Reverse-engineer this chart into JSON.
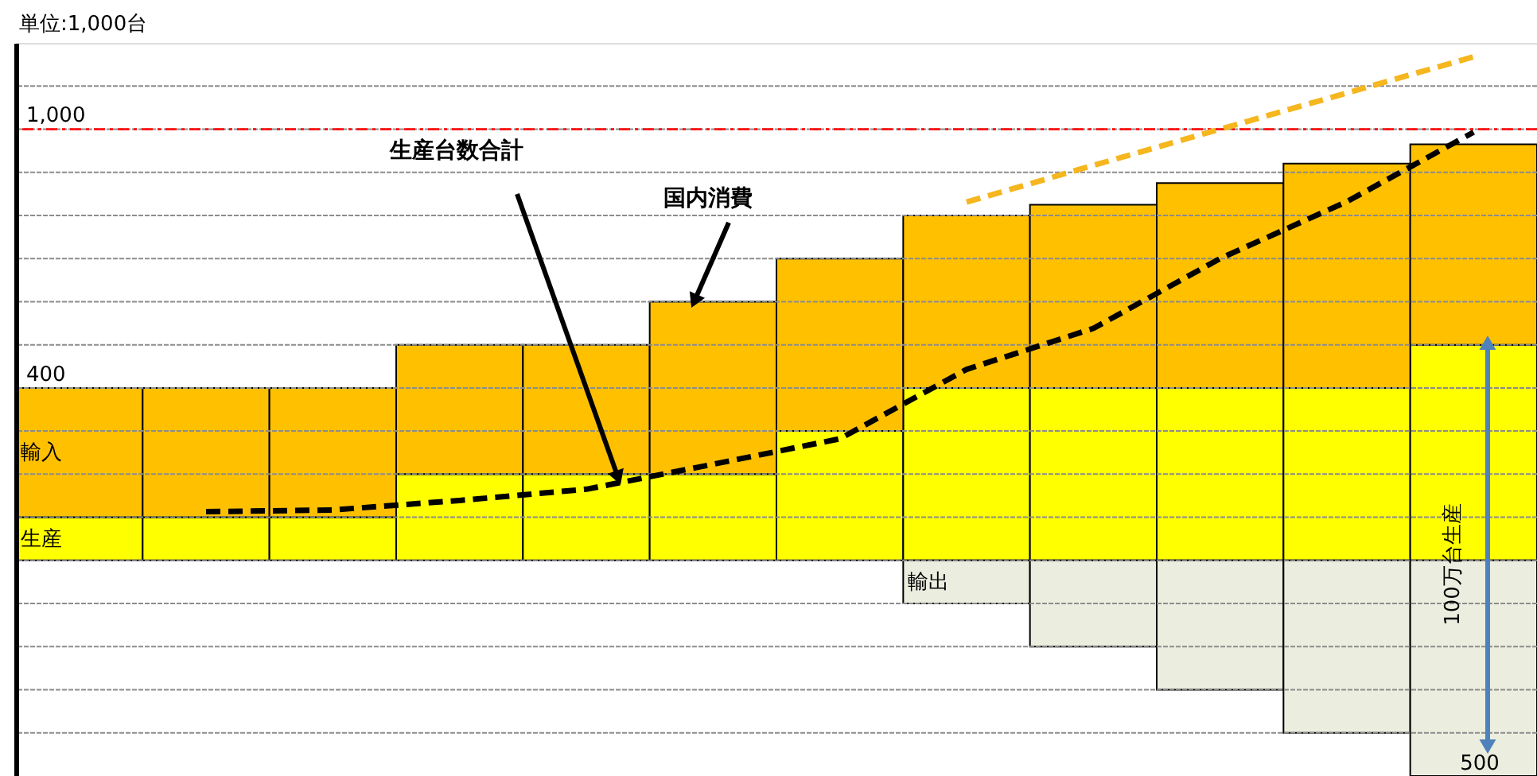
{
  "chart_data": {
    "type": "bar",
    "stacked": true,
    "categories": [
      null,
      null,
      null,
      null,
      null,
      null,
      null,
      null,
      null,
      null,
      null,
      null
    ],
    "series": [
      {
        "name": "生産",
        "color": "#ffff00",
        "values": [
          100,
          100,
          100,
          200,
          200,
          200,
          300,
          400,
          400,
          400,
          400,
          500
        ]
      },
      {
        "name": "輸入",
        "color": "#ffc000",
        "values": [
          300,
          300,
          300,
          300,
          300,
          400,
          400,
          400,
          425,
          475,
          520,
          465
        ]
      },
      {
        "name": "輸出",
        "color": "#ebeedf",
        "values": [
          null,
          null,
          null,
          null,
          null,
          null,
          null,
          -100,
          -200,
          -300,
          -400,
          -500
        ]
      },
      {
        "type": "line",
        "line_style": "dashed",
        "color": "#000000",
        "values": [
          null,
          113,
          117,
          139,
          165,
          223,
          282,
          443,
          538,
          700,
          832,
          993
        ]
      },
      {
        "type": "line",
        "line_style": "dashed",
        "color": "#f5b61e",
        "values": [
          null,
          null,
          null,
          null,
          null,
          null,
          null,
          831,
          916,
          1000,
          1084,
          1168
        ]
      }
    ],
    "ylim": [
      -500,
      1200
    ],
    "yticks": [
      {
        "value": -400,
        "label": null
      },
      {
        "value": -300,
        "label": null
      },
      {
        "value": -200,
        "label": null
      },
      {
        "value": -100,
        "label": null
      },
      {
        "value": 0,
        "label": null
      },
      {
        "value": 100,
        "label": null
      },
      {
        "value": 200,
        "label": null
      },
      {
        "value": 300,
        "label": null
      },
      {
        "value": 400,
        "label": "400"
      },
      {
        "value": 500,
        "label": null
      },
      {
        "value": 600,
        "label": null
      },
      {
        "value": 700,
        "label": null
      },
      {
        "value": 800,
        "label": null
      },
      {
        "value": 900,
        "label": null
      },
      {
        "value": 1000,
        "label": "1,000"
      },
      {
        "value": 1100,
        "label": null
      }
    ],
    "ref_lines": [
      {
        "axis": "y",
        "value": 1000,
        "color": "#ff0000",
        "line_style": "dashed"
      }
    ],
    "annotations": [
      "単位:1,000台",
      "生産台数合計",
      "国内消費",
      "100万台生産",
      {
        "text": "500",
        "y": -500
      }
    ],
    "grid": "y",
    "legend": false,
    "tick_labels": "y"
  }
}
